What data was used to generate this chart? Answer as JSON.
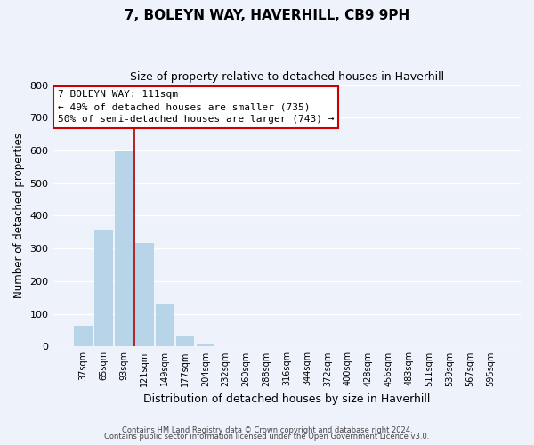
{
  "title": "7, BOLEYN WAY, HAVERHILL, CB9 9PH",
  "subtitle": "Size of property relative to detached houses in Haverhill",
  "xlabel": "Distribution of detached houses by size in Haverhill",
  "ylabel": "Number of detached properties",
  "bar_labels": [
    "37sqm",
    "65sqm",
    "93sqm",
    "121sqm",
    "149sqm",
    "177sqm",
    "204sqm",
    "232sqm",
    "260sqm",
    "288sqm",
    "316sqm",
    "344sqm",
    "372sqm",
    "400sqm",
    "428sqm",
    "456sqm",
    "483sqm",
    "511sqm",
    "539sqm",
    "567sqm",
    "595sqm"
  ],
  "bar_values": [
    65,
    357,
    596,
    318,
    130,
    30,
    10,
    0,
    0,
    0,
    0,
    0,
    0,
    0,
    0,
    0,
    0,
    0,
    0,
    0,
    0
  ],
  "bar_color": "#b8d4e8",
  "vline_color": "#aa0000",
  "ylim": [
    0,
    800
  ],
  "yticks": [
    0,
    100,
    200,
    300,
    400,
    500,
    600,
    700,
    800
  ],
  "ann_line1": "7 BOLEYN WAY: 111sqm",
  "ann_line2": "← 49% of detached houses are smaller (735)",
  "ann_line3": "50% of semi-detached houses are larger (743) →",
  "footer_line1": "Contains HM Land Registry data © Crown copyright and database right 2024.",
  "footer_line2": "Contains public sector information licensed under the Open Government Licence v3.0.",
  "background_color": "#eef2fb",
  "grid_color": "#ffffff",
  "title_fontsize": 11,
  "subtitle_fontsize": 9,
  "ylabel_text": "Number of detached properties"
}
